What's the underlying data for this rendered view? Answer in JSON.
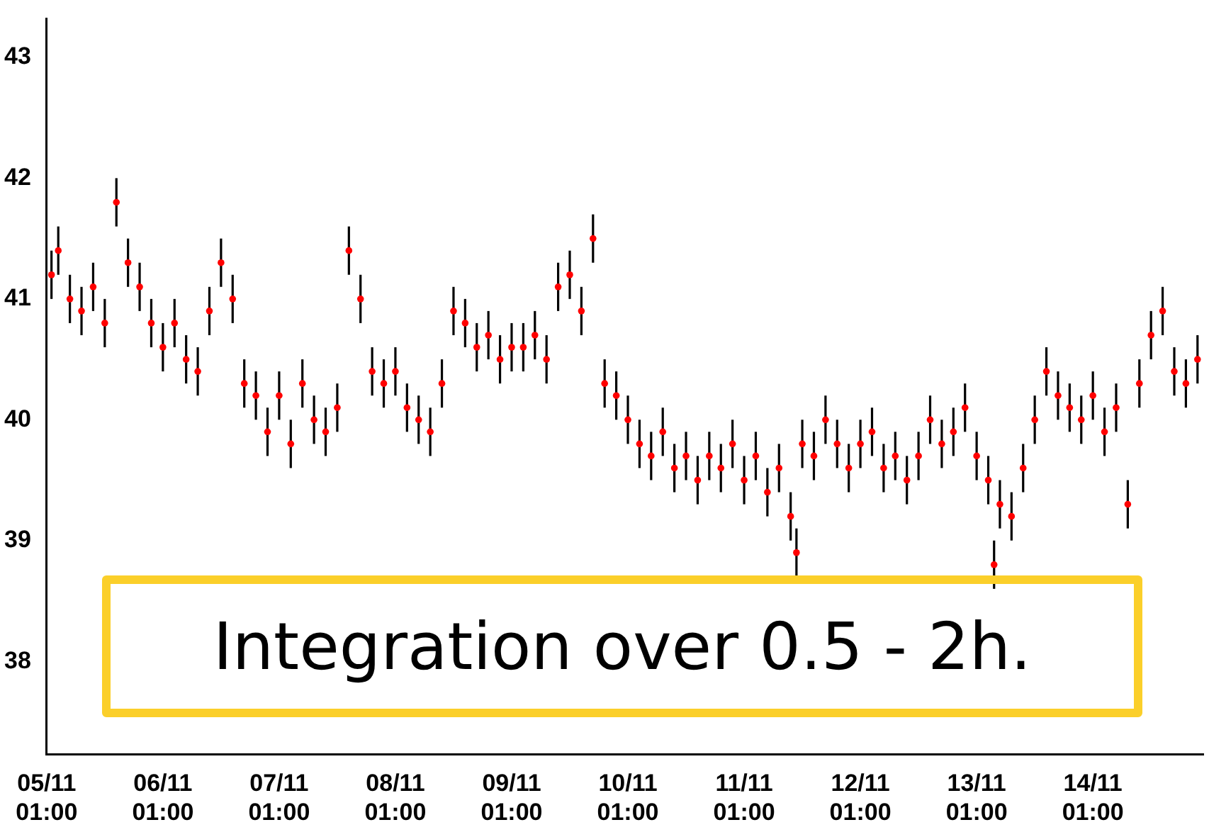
{
  "chart_data": {
    "type": "scatter",
    "annotations": [
      "Integration over 0.5 - 2h."
    ],
    "x": [
      "--11-05T02:00",
      "--11-05T03:24",
      "--11-05T05:48",
      "--11-05T08:12",
      "--11-05T10:36",
      "--11-05T13:00",
      "--11-05T15:24",
      "--11-05T17:48",
      "--11-05T20:12",
      "--11-05T22:36",
      "--11-06T01:00",
      "--11-06T03:24",
      "--11-06T05:48",
      "--11-06T08:12",
      "--11-06T10:36",
      "--11-06T13:00",
      "--11-06T15:24",
      "--11-06T17:48",
      "--11-06T20:12",
      "--11-06T22:36",
      "--11-07T01:00",
      "--11-07T03:24",
      "--11-07T05:48",
      "--11-07T08:12",
      "--11-07T10:36",
      "--11-07T13:00",
      "--11-07T15:24",
      "--11-07T17:48",
      "--11-07T20:12",
      "--11-07T22:36",
      "--11-08T01:00",
      "--11-08T03:24",
      "--11-08T05:48",
      "--11-08T08:12",
      "--11-08T10:36",
      "--11-08T13:00",
      "--11-08T15:24",
      "--11-08T17:48",
      "--11-08T20:12",
      "--11-08T22:36",
      "--11-09T01:00",
      "--11-09T03:24",
      "--11-09T05:48",
      "--11-09T08:12",
      "--11-09T10:36",
      "--11-09T13:00",
      "--11-09T15:24",
      "--11-09T17:48",
      "--11-09T20:12",
      "--11-09T22:36",
      "--11-10T01:00",
      "--11-10T03:24",
      "--11-10T05:48",
      "--11-10T08:12",
      "--11-10T10:36",
      "--11-10T13:00",
      "--11-10T15:24",
      "--11-10T17:48",
      "--11-10T20:12",
      "--11-10T22:36",
      "--11-11T01:00",
      "--11-11T03:24",
      "--11-11T05:48",
      "--11-11T08:12",
      "--11-11T10:36",
      "--11-11T11:48",
      "--11-11T13:00",
      "--11-11T15:24",
      "--11-11T17:48",
      "--11-11T20:12",
      "--11-11T22:36",
      "--11-12T01:00",
      "--11-12T03:24",
      "--11-12T05:48",
      "--11-12T08:12",
      "--11-12T10:36",
      "--11-12T13:00",
      "--11-12T15:24",
      "--11-12T17:48",
      "--11-12T20:12",
      "--11-12T22:36",
      "--11-13T01:00",
      "--11-13T03:24",
      "--11-13T04:36",
      "--11-13T05:48",
      "--11-13T08:12",
      "--11-13T10:36",
      "--11-13T13:00",
      "--11-13T15:24",
      "--11-13T17:48",
      "--11-13T20:12",
      "--11-13T22:36",
      "--11-14T01:00",
      "--11-14T03:24",
      "--11-14T05:48",
      "--11-14T08:12",
      "--11-14T10:36",
      "--11-14T13:00",
      "--11-14T15:24",
      "--11-14T17:48",
      "--11-14T20:12",
      "--11-14T22:36"
    ],
    "series": [
      {
        "color": "#ff0000",
        "values": [
          41.2,
          41.4,
          41.0,
          40.9,
          41.1,
          40.8,
          41.8,
          41.3,
          41.1,
          40.8,
          40.6,
          40.8,
          40.5,
          40.4,
          40.9,
          41.3,
          41.0,
          40.3,
          40.2,
          39.9,
          40.2,
          39.8,
          40.3,
          40.0,
          39.9,
          40.1,
          41.4,
          41.0,
          40.4,
          40.3,
          40.4,
          40.1,
          40.0,
          39.9,
          40.3,
          40.9,
          40.8,
          40.6,
          40.7,
          40.5,
          40.6,
          40.6,
          40.7,
          40.5,
          41.1,
          41.2,
          40.9,
          41.5,
          40.3,
          40.2,
          40.0,
          39.8,
          39.7,
          39.9,
          39.6,
          39.7,
          39.5,
          39.7,
          39.6,
          39.8,
          39.5,
          39.7,
          39.4,
          39.6,
          39.2,
          38.9,
          39.8,
          39.7,
          40.0,
          39.8,
          39.6,
          39.8,
          39.9,
          39.6,
          39.7,
          39.5,
          39.7,
          40.0,
          39.8,
          39.9,
          40.1,
          39.7,
          39.5,
          38.8,
          39.3,
          39.2,
          39.6,
          40.0,
          40.4,
          40.2,
          40.1,
          40.0,
          40.2,
          39.9,
          40.1,
          39.3,
          40.3,
          40.7,
          40.9,
          40.4,
          40.3,
          40.5
        ],
        "errors": [
          0.2,
          0.2,
          0.2,
          0.2,
          0.2,
          0.2,
          0.2,
          0.2,
          0.2,
          0.2,
          0.2,
          0.2,
          0.2,
          0.2,
          0.2,
          0.2,
          0.2,
          0.2,
          0.2,
          0.2,
          0.2,
          0.2,
          0.2,
          0.2,
          0.2,
          0.2,
          0.2,
          0.2,
          0.2,
          0.2,
          0.2,
          0.2,
          0.2,
          0.2,
          0.2,
          0.2,
          0.2,
          0.2,
          0.2,
          0.2,
          0.2,
          0.2,
          0.2,
          0.2,
          0.2,
          0.2,
          0.2,
          0.2,
          0.2,
          0.2,
          0.2,
          0.2,
          0.2,
          0.2,
          0.2,
          0.2,
          0.2,
          0.2,
          0.2,
          0.2,
          0.2,
          0.2,
          0.2,
          0.2,
          0.2,
          0.2,
          0.2,
          0.2,
          0.2,
          0.2,
          0.2,
          0.2,
          0.2,
          0.2,
          0.2,
          0.2,
          0.2,
          0.2,
          0.2,
          0.2,
          0.2,
          0.2,
          0.2,
          0.2,
          0.2,
          0.2,
          0.2,
          0.2,
          0.2,
          0.2,
          0.2,
          0.2,
          0.2,
          0.2,
          0.2,
          0.2,
          0.2,
          0.2,
          0.2,
          0.2,
          0.2,
          0.2
        ]
      }
    ],
    "marker": "circle",
    "xlim": [
      "--11-05T01:00",
      "--11-14T23:48"
    ],
    "xticks": [
      {
        "value": "--11-05T01:00",
        "label": "05/11\n01:00"
      },
      {
        "value": "--11-06T01:00",
        "label": "06/11\n01:00"
      },
      {
        "value": "--11-07T01:00",
        "label": "07/11\n01:00"
      },
      {
        "value": "--11-08T01:00",
        "label": "08/11\n01:00"
      },
      {
        "value": "--11-09T01:00",
        "label": "09/11\n01:00"
      },
      {
        "value": "--11-10T01:00",
        "label": "10/11\n01:00"
      },
      {
        "value": "--11-11T01:00",
        "label": "11/11\n01:00"
      },
      {
        "value": "--11-12T01:00",
        "label": "12/11\n01:00"
      },
      {
        "value": "--11-13T01:00",
        "label": "13/11\n01:00"
      },
      {
        "value": "--11-14T01:00",
        "label": "14/11\n01:00"
      }
    ],
    "ylim": [
      37.23,
      43.32
    ],
    "yticks": [
      38,
      39,
      40,
      41,
      42,
      43
    ],
    "grid": false,
    "legend": false
  }
}
